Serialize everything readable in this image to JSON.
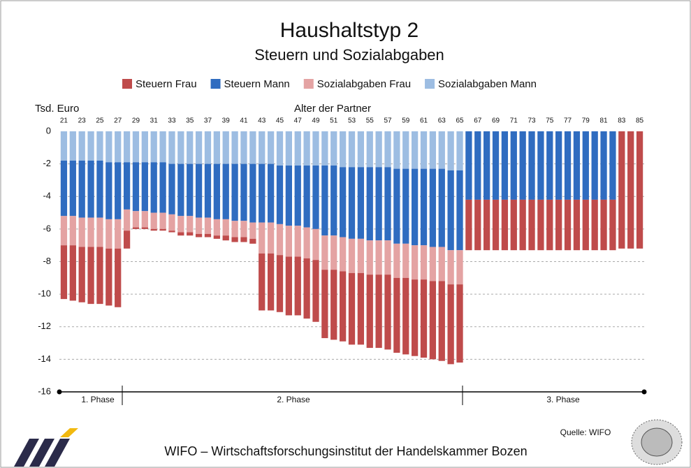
{
  "chart_data": {
    "type": "stacked_bar",
    "title": "Haushaltstyp 2",
    "subtitle": "Steuern und Sozialabgaben",
    "y_label": "Tsd. Euro",
    "x_label": "Alter der Partner",
    "annotations": [
      "1. Phase",
      "2. Phase",
      "3. Phase"
    ],
    "categories": [
      21,
      null,
      23,
      null,
      25,
      null,
      27,
      null,
      29,
      null,
      31,
      null,
      33,
      null,
      35,
      null,
      37,
      null,
      39,
      null,
      41,
      null,
      43,
      null,
      45,
      null,
      47,
      null,
      49,
      null,
      51,
      null,
      53,
      null,
      55,
      null,
      57,
      null,
      59,
      null,
      61,
      null,
      63,
      null,
      65,
      null,
      67,
      null,
      69,
      null,
      71,
      null,
      73,
      null,
      75,
      null,
      77,
      null,
      79,
      null,
      81,
      null,
      83,
      null,
      85
    ],
    "ylim": [
      -16,
      0
    ],
    "yticks": [
      0,
      -2,
      -4,
      -6,
      -8,
      -10,
      -12,
      -14,
      -16
    ],
    "grid": true,
    "series": [
      {
        "name": "Sozialabgaben Mann",
        "color": "#9dbde2",
        "values": [
          -1.8,
          -1.8,
          -1.8,
          -1.8,
          -1.8,
          -1.9,
          -1.9,
          -1.9,
          -1.9,
          -1.9,
          -1.9,
          -1.9,
          -2.0,
          -2.0,
          -2.0,
          -2.0,
          -2.0,
          -2.0,
          -2.0,
          -2.0,
          -2.0,
          -2.0,
          -2.0,
          -2.0,
          -2.1,
          -2.1,
          -2.1,
          -2.1,
          -2.1,
          -2.1,
          -2.1,
          -2.2,
          -2.2,
          -2.2,
          -2.2,
          -2.2,
          -2.2,
          -2.3,
          -2.3,
          -2.3,
          -2.3,
          -2.3,
          -2.3,
          -2.4,
          -2.4,
          0,
          0,
          0,
          0,
          0,
          0,
          0,
          0,
          0,
          0,
          0,
          0,
          0,
          0,
          0,
          0,
          0,
          0,
          0,
          0
        ]
      },
      {
        "name": "Steuern Mann",
        "color": "#2f6cc0",
        "values": [
          -3.4,
          -3.4,
          -3.5,
          -3.5,
          -3.5,
          -3.5,
          -3.5,
          -2.9,
          -3.0,
          -3.0,
          -3.1,
          -3.1,
          -3.1,
          -3.2,
          -3.2,
          -3.3,
          -3.3,
          -3.4,
          -3.4,
          -3.5,
          -3.5,
          -3.6,
          -3.6,
          -3.6,
          -3.6,
          -3.7,
          -3.7,
          -3.8,
          -3.9,
          -4.3,
          -4.3,
          -4.3,
          -4.4,
          -4.4,
          -4.5,
          -4.5,
          -4.5,
          -4.6,
          -4.6,
          -4.7,
          -4.7,
          -4.8,
          -4.8,
          -4.9,
          -4.9,
          -4.2,
          -4.2,
          -4.2,
          -4.2,
          -4.2,
          -4.2,
          -4.2,
          -4.2,
          -4.2,
          -4.2,
          -4.2,
          -4.2,
          -4.2,
          -4.2,
          -4.2,
          -4.2,
          -4.2,
          0,
          0,
          0
        ]
      },
      {
        "name": "Sozialabgaben Frau",
        "color": "#e4a3a3",
        "values": [
          -1.8,
          -1.8,
          -1.8,
          -1.8,
          -1.8,
          -1.8,
          -1.8,
          -1.3,
          -1.0,
          -1.0,
          -1.0,
          -1.0,
          -1.0,
          -1.0,
          -1.0,
          -1.0,
          -1.0,
          -1.0,
          -1.0,
          -1.0,
          -1.0,
          -1.0,
          -1.9,
          -1.9,
          -1.9,
          -1.9,
          -1.9,
          -1.9,
          -1.9,
          -2.1,
          -2.1,
          -2.1,
          -2.1,
          -2.1,
          -2.1,
          -2.1,
          -2.1,
          -2.1,
          -2.1,
          -2.1,
          -2.1,
          -2.1,
          -2.1,
          -2.1,
          -2.1,
          0,
          0,
          0,
          0,
          0,
          0,
          0,
          0,
          0,
          0,
          0,
          0,
          0,
          0,
          0,
          0,
          0,
          0,
          0,
          0
        ]
      },
      {
        "name": "Steuern Frau",
        "color": "#bf4b4b",
        "values": [
          -3.3,
          -3.4,
          -3.4,
          -3.5,
          -3.5,
          -3.5,
          -3.6,
          -1.1,
          -0.1,
          -0.1,
          -0.1,
          -0.1,
          -0.1,
          -0.2,
          -0.2,
          -0.2,
          -0.2,
          -0.2,
          -0.3,
          -0.3,
          -0.3,
          -0.3,
          -3.5,
          -3.5,
          -3.5,
          -3.6,
          -3.6,
          -3.7,
          -3.8,
          -4.2,
          -4.3,
          -4.3,
          -4.4,
          -4.4,
          -4.5,
          -4.5,
          -4.6,
          -4.6,
          -4.7,
          -4.7,
          -4.8,
          -4.8,
          -4.9,
          -4.9,
          -4.8,
          -3.1,
          -3.1,
          -3.1,
          -3.1,
          -3.1,
          -3.1,
          -3.1,
          -3.1,
          -3.1,
          -3.1,
          -3.1,
          -3.1,
          -3.1,
          -3.1,
          -3.1,
          -3.1,
          -3.1,
          -7.2,
          -7.2,
          -7.2
        ]
      }
    ],
    "legend_series_order": [
      3,
      1,
      2,
      0
    ],
    "footer": "WIFO – Wirtschaftsforschungsinstitut der Handelskammer Bozen",
    "source": "Quelle: WIFO"
  }
}
